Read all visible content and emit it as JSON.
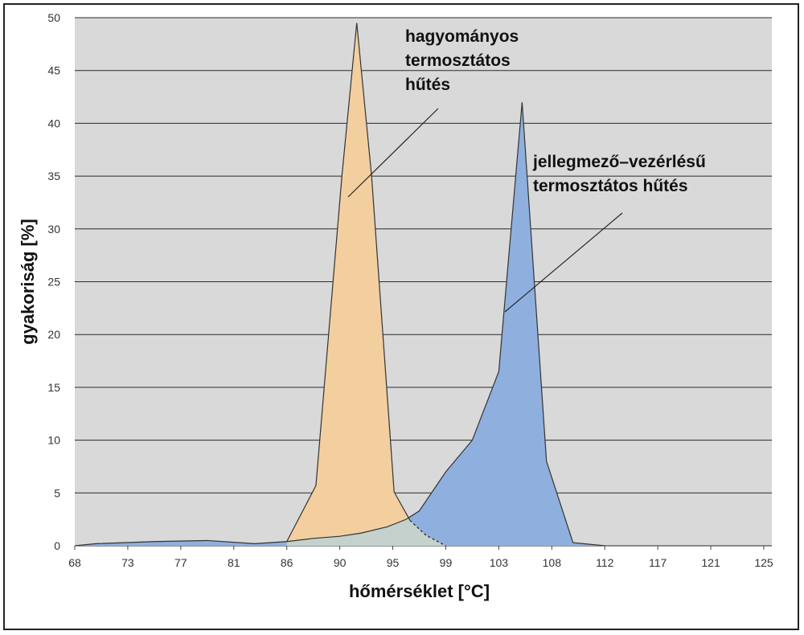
{
  "chart_data": {
    "type": "area",
    "xlabel": "hőmérséklet [°C]",
    "ylabel": "gyakoriság [%]",
    "ylim": [
      0,
      50
    ],
    "yticks": [
      0,
      5,
      10,
      15,
      20,
      25,
      30,
      35,
      40,
      45,
      50
    ],
    "x_tick_labels": [
      "68",
      "73",
      "77",
      "81",
      "86",
      "90",
      "95",
      "99",
      "103",
      "108",
      "112",
      "117",
      "121",
      "125"
    ],
    "grid": "horizontal",
    "colors": {
      "plot_bg": "#d9d9d9",
      "conventional": "#f3cfa0",
      "map_controlled": "#8fb0de",
      "overlap": "#c5d1cc",
      "line": "#333333"
    },
    "series": [
      {
        "key": "map_controlled",
        "points": [
          [
            68,
            0
          ],
          [
            70,
            0.2
          ],
          [
            75,
            0.4
          ],
          [
            79,
            0.5
          ],
          [
            83,
            0.2
          ],
          [
            86,
            0.4
          ],
          [
            88,
            0.7
          ],
          [
            90,
            0.9
          ],
          [
            92,
            1.2
          ],
          [
            94.5,
            1.8
          ],
          [
            96,
            2.5
          ],
          [
            97,
            3.3
          ],
          [
            99,
            7
          ],
          [
            101,
            10
          ],
          [
            103,
            16.5
          ],
          [
            105.2,
            42
          ],
          [
            107.5,
            8
          ],
          [
            109.6,
            0.3
          ],
          [
            112,
            0
          ]
        ]
      },
      {
        "key": "conventional",
        "points": [
          [
            86,
            0.4
          ],
          [
            88.2,
            5.7
          ],
          [
            90.2,
            35
          ],
          [
            91.6,
            49.5
          ],
          [
            93,
            35
          ],
          [
            95.1,
            5.1
          ],
          [
            96.3,
            2.4
          ],
          [
            97.5,
            1
          ],
          [
            99,
            0
          ]
        ]
      }
    ],
    "annotations": [
      {
        "target": "conventional",
        "lines": [
          "hagyományos",
          "termosztátos",
          "hűtés"
        ]
      },
      {
        "target": "map_controlled",
        "lines": [
          "jellegmező–vezérlésű",
          "termosztátos hűtés"
        ]
      }
    ]
  }
}
